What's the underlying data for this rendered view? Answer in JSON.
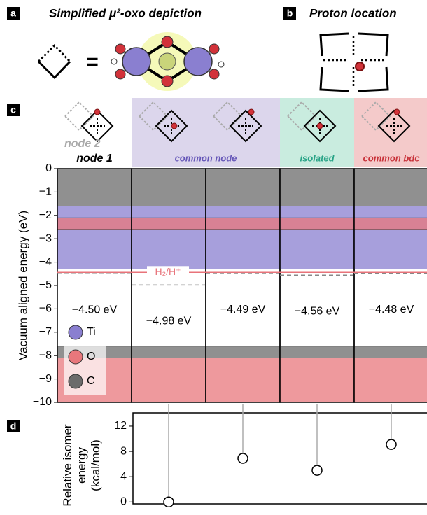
{
  "panels": {
    "a": {
      "label": "a",
      "title": "Simplified μ²-oxo depiction",
      "equals": "="
    },
    "b": {
      "label": "b",
      "title": "Proton location"
    },
    "c": {
      "label": "c"
    },
    "d": {
      "label": "d"
    }
  },
  "chart_data": [
    {
      "type": "dos",
      "ylabel": "Vacuum aligned energy (eV)",
      "ylim": [
        -10,
        0
      ],
      "yticks": [
        0,
        {
          "value": -1,
          "label": "−1"
        },
        {
          "value": -2,
          "label": "−2"
        },
        {
          "value": -3,
          "label": "−3"
        },
        {
          "value": -4,
          "label": "−4"
        },
        {
          "value": -5,
          "label": "−5"
        },
        {
          "value": -6,
          "label": "−6"
        },
        {
          "value": -7,
          "label": "−7"
        },
        {
          "value": -8,
          "label": "−8"
        },
        {
          "value": -9,
          "label": "−9"
        },
        {
          "value": -10,
          "label": "−10"
        }
      ],
      "extra_label": "node 2",
      "extra_label_color": "#aaaaaa",
      "groups": [
        {
          "label": "node 1",
          "label_color": "#000000",
          "background": "#ffffff",
          "values": [
            -4.5
          ],
          "value_labels": [
            "−4.50 eV"
          ]
        },
        {
          "label": "common node",
          "label_color": "#6657b8",
          "background": "#dcd6ec",
          "values": [
            -4.98,
            -4.49
          ],
          "value_labels": [
            "−4.98 eV",
            "−4.49 eV"
          ]
        },
        {
          "label": "isolated",
          "label_color": "#27a386",
          "background": "#c9ecdf",
          "values": [
            -4.56
          ],
          "value_labels": [
            "−4.56 eV"
          ]
        },
        {
          "label": "common bdc",
          "label_color": "#c8323a",
          "background": "#f4caca",
          "values": [
            -4.48
          ],
          "value_labels": [
            "−4.48 eV"
          ]
        }
      ],
      "reference": {
        "label": "H₂/H⁺",
        "value": -4.44,
        "color": "#e8737a"
      },
      "series": [
        {
          "name": "Ti",
          "color": "#8a7fd0",
          "bands": [
            [
              -4.3,
              -1.6
            ]
          ]
        },
        {
          "name": "O",
          "color": "#e8777c",
          "bands": [
            [
              -10,
              -8.1
            ],
            [
              -2.6,
              -2.1
            ]
          ]
        },
        {
          "name": "C",
          "color": "#6b6b6b",
          "bands": [
            [
              -8.1,
              -7.6
            ],
            [
              -1.6,
              0
            ]
          ]
        }
      ]
    },
    {
      "type": "stem",
      "ylabel": "Relative isomer energy (kcal/mol)",
      "ylim": [
        -0.3,
        14.1
      ],
      "yticks": [
        0,
        4,
        8,
        12
      ],
      "values": [
        null,
        0,
        6.9,
        5.0,
        9.1
      ],
      "marker_color": "#ffffff",
      "stem_color": "#aaaaaa"
    }
  ]
}
